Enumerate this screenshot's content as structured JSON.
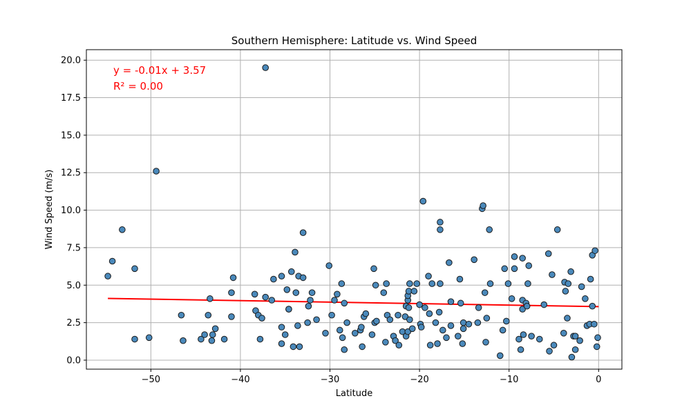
{
  "chart_data": {
    "type": "scatter",
    "title": "Southern Hemisphere: Latitude vs. Wind Speed",
    "xlabel": "Latitude",
    "ylabel": "Wind Speed (m/s)",
    "xlim": [
      -57.2,
      2.6
    ],
    "ylim": [
      -0.6,
      20.7
    ],
    "xticks": [
      -50,
      -40,
      -30,
      -20,
      -10,
      0
    ],
    "yticks": [
      0.0,
      2.5,
      5.0,
      7.5,
      10.0,
      12.5,
      15.0,
      17.5,
      20.0
    ],
    "xtick_labels": [
      "−50",
      "−40",
      "−30",
      "−20",
      "−10",
      "0"
    ],
    "ytick_labels": [
      "0.0",
      "2.5",
      "5.0",
      "7.5",
      "10.0",
      "12.5",
      "15.0",
      "17.5",
      "20.0"
    ],
    "grid": true,
    "colors": {
      "points": "#4a89bb",
      "point_edge": "#1a1a1a",
      "regression": "#ff0000",
      "annotation": "#ff0000",
      "grid": "#b0b0b0"
    },
    "regression": {
      "slope": -0.01,
      "intercept": 3.57,
      "x_range": [
        -54.8,
        0
      ],
      "equation": "y = -0.01x + 3.57",
      "r2": "R² = 0.00"
    },
    "points": [
      [
        -54.8,
        5.6
      ],
      [
        -54.3,
        6.6
      ],
      [
        -53.2,
        8.7
      ],
      [
        -51.8,
        6.1
      ],
      [
        -51.8,
        1.4
      ],
      [
        -50.2,
        1.5
      ],
      [
        -49.4,
        12.6
      ],
      [
        -46.6,
        3.0
      ],
      [
        -46.4,
        1.3
      ],
      [
        -44.4,
        1.4
      ],
      [
        -44.0,
        1.7
      ],
      [
        -43.6,
        3.0
      ],
      [
        -43.4,
        4.1
      ],
      [
        -43.2,
        1.3
      ],
      [
        -43.1,
        1.7
      ],
      [
        -42.8,
        2.1
      ],
      [
        -41.8,
        1.4
      ],
      [
        -41.0,
        2.9
      ],
      [
        -41.0,
        4.5
      ],
      [
        -40.8,
        5.5
      ],
      [
        -38.4,
        4.4
      ],
      [
        -38.3,
        3.3
      ],
      [
        -38.0,
        3.0
      ],
      [
        -37.8,
        1.4
      ],
      [
        -37.6,
        2.8
      ],
      [
        -37.2,
        19.5
      ],
      [
        -37.2,
        4.2
      ],
      [
        -36.5,
        4.0
      ],
      [
        -36.3,
        5.4
      ],
      [
        -35.4,
        5.6
      ],
      [
        -35.4,
        1.1
      ],
      [
        -35.4,
        2.2
      ],
      [
        -35.0,
        1.7
      ],
      [
        -34.8,
        4.7
      ],
      [
        -34.6,
        3.4
      ],
      [
        -34.6,
        3.4
      ],
      [
        -34.3,
        5.9
      ],
      [
        -34.1,
        0.9
      ],
      [
        -33.9,
        7.2
      ],
      [
        -33.8,
        4.5
      ],
      [
        -33.6,
        2.3
      ],
      [
        -33.5,
        5.6
      ],
      [
        -33.4,
        0.9
      ],
      [
        -33.0,
        8.5
      ],
      [
        -33.0,
        5.5
      ],
      [
        -32.5,
        2.5
      ],
      [
        -32.4,
        3.6
      ],
      [
        -32.2,
        4.0
      ],
      [
        -32.0,
        4.5
      ],
      [
        -31.5,
        2.7
      ],
      [
        -30.5,
        1.8
      ],
      [
        -30.1,
        6.3
      ],
      [
        -29.8,
        3.0
      ],
      [
        -29.5,
        4.0
      ],
      [
        -29.2,
        4.4
      ],
      [
        -28.9,
        2.0
      ],
      [
        -28.7,
        5.1
      ],
      [
        -28.6,
        1.5
      ],
      [
        -28.4,
        3.8
      ],
      [
        -28.4,
        0.7
      ],
      [
        -28.1,
        2.5
      ],
      [
        -27.2,
        1.8
      ],
      [
        -26.6,
        2.0
      ],
      [
        -26.5,
        2.2
      ],
      [
        -26.4,
        0.9
      ],
      [
        -26.2,
        2.9
      ],
      [
        -26.0,
        3.1
      ],
      [
        -25.3,
        1.7
      ],
      [
        -25.1,
        6.1
      ],
      [
        -25.0,
        2.5
      ],
      [
        -24.9,
        5.0
      ],
      [
        -24.8,
        2.6
      ],
      [
        -24.0,
        4.5
      ],
      [
        -23.8,
        1.2
      ],
      [
        -23.7,
        5.1
      ],
      [
        -23.6,
        3.0
      ],
      [
        -23.3,
        2.7
      ],
      [
        -22.9,
        1.6
      ],
      [
        -22.7,
        1.3
      ],
      [
        -22.4,
        3.0
      ],
      [
        -22.3,
        1.0
      ],
      [
        -21.9,
        1.9
      ],
      [
        -21.6,
        2.9
      ],
      [
        -21.5,
        3.6
      ],
      [
        -21.5,
        1.6
      ],
      [
        -21.3,
        1.9
      ],
      [
        -21.3,
        4.0
      ],
      [
        -21.3,
        4.3
      ],
      [
        -21.2,
        4.6
      ],
      [
        -21.2,
        3.5
      ],
      [
        -21.1,
        5.1
      ],
      [
        -21.1,
        2.7
      ],
      [
        -20.8,
        2.1
      ],
      [
        -20.6,
        4.6
      ],
      [
        -20.3,
        5.1
      ],
      [
        -20.0,
        3.7
      ],
      [
        -19.9,
        2.4
      ],
      [
        -19.8,
        2.2
      ],
      [
        -19.6,
        10.6
      ],
      [
        -19.4,
        3.5
      ],
      [
        -19.0,
        5.6
      ],
      [
        -18.9,
        3.1
      ],
      [
        -18.8,
        1.0
      ],
      [
        -18.6,
        5.1
      ],
      [
        -18.2,
        2.5
      ],
      [
        -18.0,
        1.1
      ],
      [
        -17.8,
        3.2
      ],
      [
        -17.7,
        5.1
      ],
      [
        -17.7,
        9.2
      ],
      [
        -17.7,
        8.7
      ],
      [
        -17.4,
        2.0
      ],
      [
        -17.0,
        1.5
      ],
      [
        -16.7,
        6.5
      ],
      [
        -16.5,
        3.9
      ],
      [
        -16.5,
        2.3
      ],
      [
        -15.7,
        1.6
      ],
      [
        -15.5,
        5.4
      ],
      [
        -15.4,
        3.8
      ],
      [
        -15.2,
        1.1
      ],
      [
        -15.1,
        2.5
      ],
      [
        -15.1,
        2.1
      ],
      [
        -14.5,
        2.4
      ],
      [
        -13.9,
        6.7
      ],
      [
        -13.5,
        2.5
      ],
      [
        -13.4,
        3.5
      ],
      [
        -13.0,
        10.1
      ],
      [
        -12.9,
        10.3
      ],
      [
        -12.7,
        4.5
      ],
      [
        -12.6,
        1.2
      ],
      [
        -12.5,
        2.8
      ],
      [
        -12.2,
        8.7
      ],
      [
        -12.1,
        5.1
      ],
      [
        -11.0,
        0.3
      ],
      [
        -10.7,
        2.0
      ],
      [
        -10.5,
        6.1
      ],
      [
        -10.3,
        2.6
      ],
      [
        -10.1,
        5.1
      ],
      [
        -9.7,
        4.1
      ],
      [
        -9.4,
        6.9
      ],
      [
        -9.4,
        6.1
      ],
      [
        -8.9,
        1.4
      ],
      [
        -8.7,
        0.7
      ],
      [
        -8.5,
        6.8
      ],
      [
        -8.5,
        4.0
      ],
      [
        -8.5,
        3.4
      ],
      [
        -8.4,
        1.7
      ],
      [
        -8.1,
        3.8
      ],
      [
        -8.0,
        3.6
      ],
      [
        -7.9,
        5.1
      ],
      [
        -7.8,
        6.3
      ],
      [
        -7.5,
        1.6
      ],
      [
        -6.6,
        1.4
      ],
      [
        -6.1,
        3.7
      ],
      [
        -5.6,
        7.1
      ],
      [
        -5.5,
        0.6
      ],
      [
        -5.2,
        5.7
      ],
      [
        -5.0,
        1.0
      ],
      [
        -4.6,
        8.7
      ],
      [
        -3.9,
        1.8
      ],
      [
        -3.8,
        5.2
      ],
      [
        -3.7,
        4.6
      ],
      [
        -3.5,
        2.8
      ],
      [
        -3.4,
        5.1
      ],
      [
        -3.1,
        5.9
      ],
      [
        -3.0,
        0.2
      ],
      [
        -2.8,
        1.6
      ],
      [
        -2.6,
        1.6
      ],
      [
        -2.6,
        0.7
      ],
      [
        -2.1,
        1.3
      ],
      [
        -1.9,
        4.9
      ],
      [
        -1.5,
        4.1
      ],
      [
        -1.3,
        2.3
      ],
      [
        -1.0,
        2.4
      ],
      [
        -0.9,
        5.4
      ],
      [
        -0.7,
        3.6
      ],
      [
        -0.7,
        7.0
      ],
      [
        -0.5,
        2.4
      ],
      [
        -0.4,
        7.3
      ],
      [
        -0.2,
        0.9
      ],
      [
        -0.1,
        1.5
      ]
    ]
  }
}
